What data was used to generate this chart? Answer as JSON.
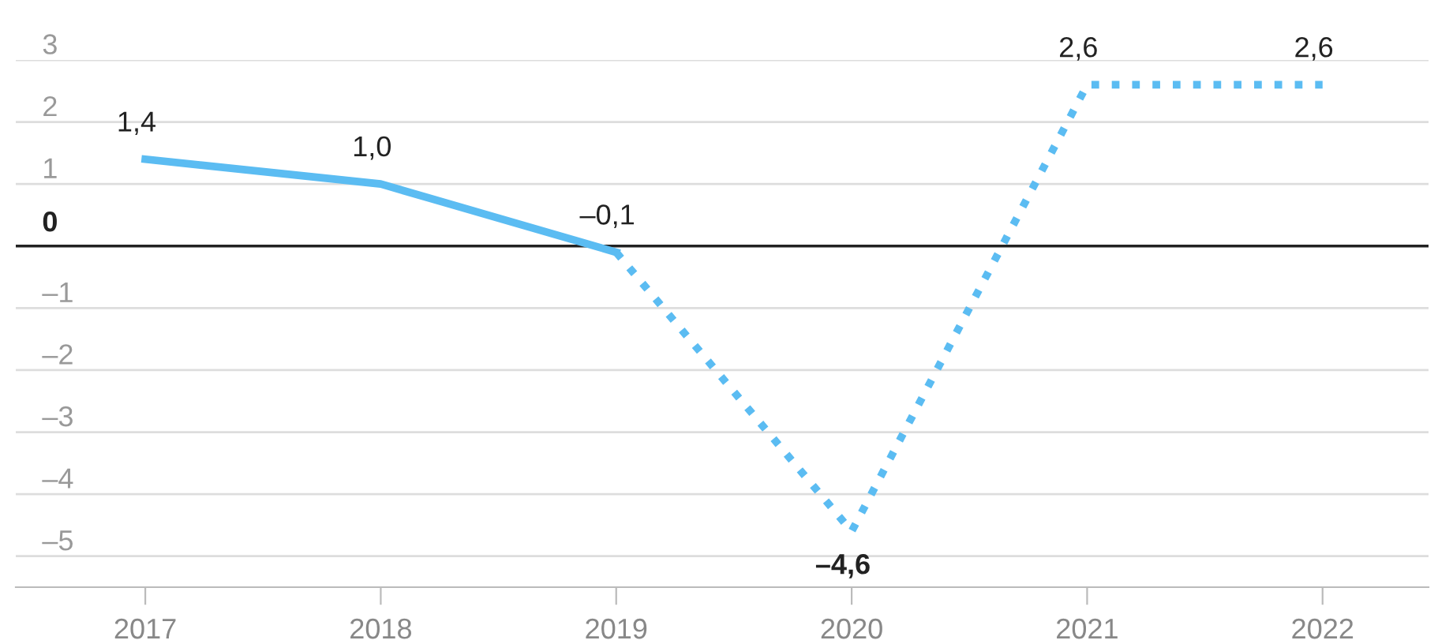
{
  "chart_data": {
    "type": "line",
    "categories": [
      "2017",
      "2018",
      "2019",
      "2020",
      "2021",
      "2022"
    ],
    "series": [
      {
        "color": "#5bbcf2",
        "line_style": "solid",
        "values": [
          1.4,
          1.0,
          -0.1,
          null,
          null,
          null
        ],
        "value_labels": [
          "1,4",
          "1,0",
          null,
          null,
          null,
          null
        ]
      },
      {
        "color": "#5bbcf2",
        "line_style": "dotted",
        "values": [
          null,
          null,
          -0.1,
          -4.6,
          2.6,
          2.6
        ],
        "value_labels": [
          null,
          null,
          "–0,1",
          "–4,6",
          "2,6",
          "2,6"
        ]
      }
    ],
    "ylim": [
      -5.5,
      3
    ],
    "yticks": [
      3,
      2,
      1,
      {
        "value": -1,
        "label": "–1"
      },
      {
        "value": -2,
        "label": "–2"
      },
      {
        "value": -3,
        "label": "–3"
      },
      {
        "value": -4,
        "label": "–4"
      },
      {
        "value": -5,
        "label": "–5"
      }
    ],
    "ref_lines": [
      {
        "axis": "y",
        "value": 0,
        "label": "0",
        "color": "#222222"
      }
    ],
    "grid": "y",
    "marker": "none"
  }
}
